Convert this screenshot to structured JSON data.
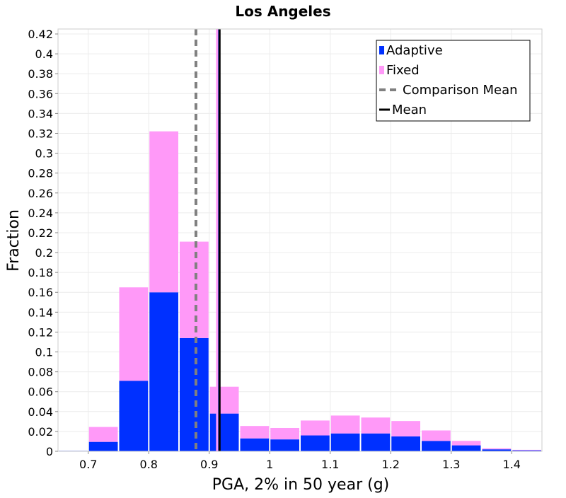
{
  "chart_data": {
    "type": "bar",
    "stacked": true,
    "title": "Los Angeles",
    "xlabel": "PGA, 2% in 50 year (g)",
    "ylabel": "Fraction",
    "xlim": [
      0.65,
      1.45
    ],
    "ylim": [
      0,
      0.425
    ],
    "x_ticks": [
      "0.7",
      "0.8",
      "0.9",
      "1",
      "1.1",
      "1.2",
      "1.3",
      "1.4"
    ],
    "y_ticks": [
      "0",
      "0.02",
      "0.04",
      "0.06",
      "0.08",
      "0.1",
      "0.12",
      "0.14",
      "0.16",
      "0.18",
      "0.2",
      "0.22",
      "0.24",
      "0.26",
      "0.28",
      "0.3",
      "0.32",
      "0.34",
      "0.36",
      "0.38",
      "0.4",
      "0.42"
    ],
    "bin_width": 0.05,
    "x": [
      0.675,
      0.725,
      0.775,
      0.825,
      0.875,
      0.925,
      0.975,
      1.025,
      1.075,
      1.125,
      1.175,
      1.225,
      1.275,
      1.325,
      1.375,
      1.425
    ],
    "series": [
      {
        "name": "Adaptive",
        "color": "#0030ff",
        "values": [
          0.0005,
          0.0095,
          0.071,
          0.16,
          0.114,
          0.038,
          0.013,
          0.012,
          0.016,
          0.018,
          0.018,
          0.015,
          0.0105,
          0.006,
          0.002,
          0.001
        ]
      },
      {
        "name": "Fixed",
        "color": "#ff99f8",
        "values": [
          0.0,
          0.015,
          0.094,
          0.162,
          0.097,
          0.027,
          0.0125,
          0.0115,
          0.015,
          0.018,
          0.016,
          0.0155,
          0.0105,
          0.0045,
          0.001,
          0.0005
        ]
      }
    ],
    "lines": [
      {
        "name": "Comparison Mean",
        "x": 0.878,
        "color": "#808080",
        "style": "dashed"
      },
      {
        "name": "Adaptive mean",
        "x": 0.916,
        "color": "#0030ff",
        "style": "solid"
      },
      {
        "name": "Fixed mean",
        "x": 0.913,
        "color": "#ff99f8",
        "style": "solid"
      },
      {
        "name": "Mean",
        "x": 0.917,
        "color": "#000000",
        "style": "solid"
      }
    ],
    "legend": {
      "position": "top-right",
      "entries": [
        {
          "label": "Adaptive",
          "kind": "box",
          "color": "#0030ff"
        },
        {
          "label": "Fixed",
          "kind": "box",
          "color": "#ff99f8"
        },
        {
          "label": "Comparison Mean",
          "kind": "dash",
          "color": "#808080"
        },
        {
          "label": "Mean",
          "kind": "line",
          "color": "#000000"
        }
      ]
    },
    "grid": true
  }
}
